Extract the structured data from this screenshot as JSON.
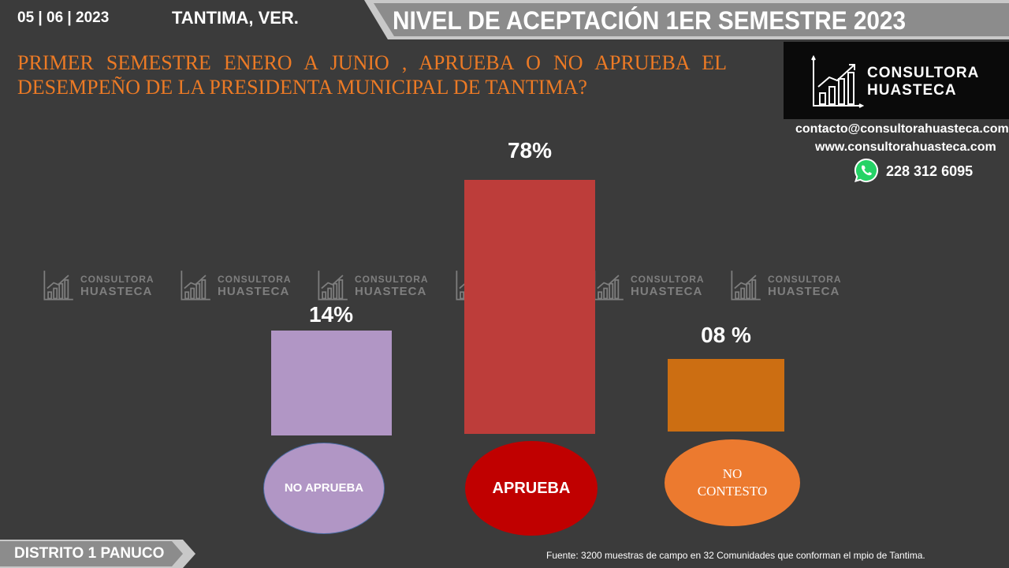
{
  "header": {
    "date": "05 | 06 | 2023",
    "place": "TANTIMA, VER.",
    "banner": "NIVEL DE ACEPTACIÓN  1ER SEMESTRE 2023"
  },
  "question": "PRIMER SEMESTRE ENERO A JUNIO , APRUEBA O NO APRUEBA EL DESEMPEÑO DE LA PRESIDENTA MUNICIPAL DE TANTIMA?",
  "brand": {
    "line1": "CONSULTORA",
    "line2": "HUASTECA",
    "email": "contacto@consultorahuasteca.com",
    "web": "www.consultorahuasteca.com",
    "phone": "228 312 6095"
  },
  "chart_data": {
    "type": "bar",
    "categories": [
      "NO APRUEBA",
      "APRUEBA",
      "NO CONTESTO"
    ],
    "values": [
      14,
      78,
      8
    ],
    "value_labels": [
      "14%",
      "78%",
      "08 %"
    ],
    "colors": [
      "#b196c5",
      "#bd3d3a",
      "#cc6e12"
    ],
    "ellipse_colors": [
      "#b196c5",
      "#c00000",
      "#ec7a2f"
    ],
    "unit": "%",
    "grid": false,
    "legend": "none"
  },
  "footer": {
    "district": "DISTRITO 1 PANUCO",
    "source": "Fuente: 3200  muestras de campo en  32  Comunidades que conforman el mpio de Tantima."
  },
  "icons": [
    "growth-chart-icon",
    "whatsapp-icon"
  ]
}
